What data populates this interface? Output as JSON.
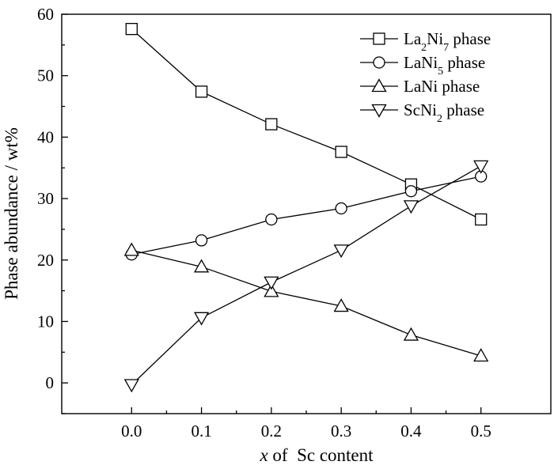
{
  "chart_data": {
    "type": "line",
    "title": "",
    "xlabel_italic": "x",
    "xlabel_rest": " of  Sc content",
    "ylabel": "Phase abundance / wt%",
    "xlim": [
      -0.1,
      0.6
    ],
    "ylim": [
      -5,
      60
    ],
    "x": [
      0.0,
      0.1,
      0.2,
      0.3,
      0.4,
      0.5
    ],
    "x_ticks": [
      0.0,
      0.1,
      0.2,
      0.3,
      0.4,
      0.5
    ],
    "x_tick_labels": [
      "0.0",
      "0.1",
      "0.2",
      "0.3",
      "0.4",
      "0.5"
    ],
    "y_ticks": [
      0,
      10,
      20,
      30,
      40,
      50,
      60
    ],
    "y_tick_labels": [
      "0",
      "10",
      "20",
      "30",
      "40",
      "50",
      "60"
    ],
    "grid": false,
    "legend_position": "top-right",
    "series": [
      {
        "name": "La2Ni7 phase",
        "marker": "square",
        "legend": {
          "base": "La",
          "sub": "2",
          "mid": "Ni",
          "sub2": "7",
          "rest": " phase"
        },
        "values": [
          57.6,
          47.4,
          42.1,
          37.6,
          32.3,
          26.6
        ]
      },
      {
        "name": "LaNi5 phase",
        "marker": "circle",
        "legend": {
          "base": "LaNi",
          "sub": "5",
          "mid": "",
          "sub2": "",
          "rest": " phase"
        },
        "values": [
          20.9,
          23.2,
          26.6,
          28.4,
          31.2,
          33.6
        ]
      },
      {
        "name": "LaNi phase",
        "marker": "triangle-up",
        "legend": {
          "base": "LaNi phase",
          "sub": "",
          "mid": "",
          "sub2": "",
          "rest": ""
        },
        "values": [
          21.6,
          18.9,
          14.9,
          12.5,
          7.8,
          4.4
        ]
      },
      {
        "name": "ScNi2 phase",
        "marker": "triangle-down",
        "legend": {
          "base": "ScNi",
          "sub": "2",
          "mid": "",
          "sub2": "",
          "rest": " phase"
        },
        "values": [
          -0.3,
          10.6,
          16.4,
          21.6,
          28.8,
          35.3
        ]
      }
    ]
  }
}
